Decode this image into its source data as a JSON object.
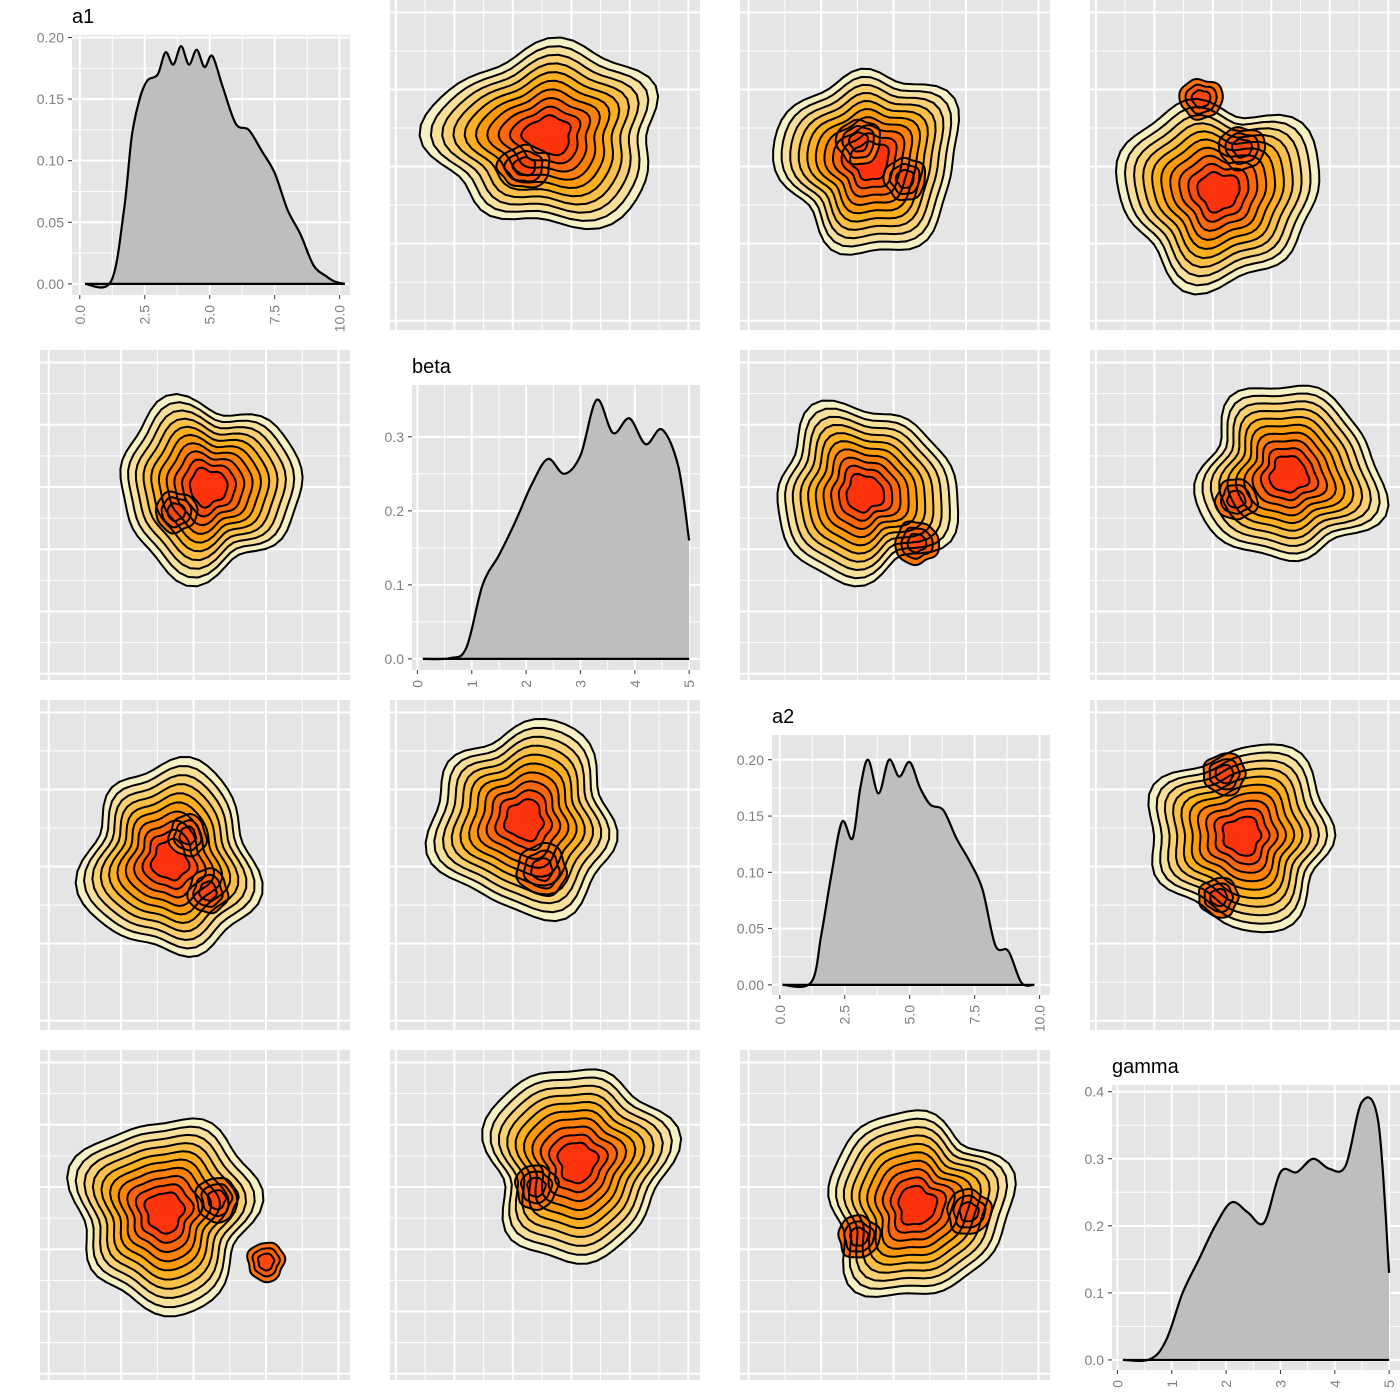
{
  "chart_data": {
    "type": "pairs",
    "colors": {
      "panel_bg": "#e5e5e5",
      "grid": "#ffffff",
      "density_fill": "#bebebe",
      "density_line": "#000000",
      "contour_line": "#000000",
      "heat_low": "#f7f1c4",
      "heat_mid": "#ffa500",
      "heat_high": "#ff2a00"
    },
    "variables": [
      {
        "name": "a1",
        "xlim": [
          -0.3,
          10.4
        ],
        "ylim": [
          -0.009,
          0.202
        ],
        "xticks": [
          "0.0",
          "2.5",
          "5.0",
          "7.5",
          "10.0"
        ],
        "xtick_values": [
          0,
          2.5,
          5,
          7.5,
          10
        ],
        "yticks": [
          "0.00",
          "0.05",
          "0.10",
          "0.15",
          "0.20"
        ],
        "ytick_values": [
          0,
          0.05,
          0.1,
          0.15,
          0.2
        ]
      },
      {
        "name": "beta",
        "xlim": [
          -0.1,
          5.2
        ],
        "ylim": [
          -0.015,
          0.37
        ],
        "xticks": [
          "0",
          "1",
          "2",
          "3",
          "4",
          "5"
        ],
        "xtick_values": [
          0,
          1,
          2,
          3,
          4,
          5
        ],
        "yticks": [
          "0.0",
          "0.1",
          "0.2",
          "0.3"
        ],
        "ytick_values": [
          0,
          0.1,
          0.2,
          0.3
        ]
      },
      {
        "name": "a2",
        "xlim": [
          -0.3,
          10.4
        ],
        "ylim": [
          -0.009,
          0.222
        ],
        "xticks": [
          "0.0",
          "2.5",
          "5.0",
          "7.5",
          "10.0"
        ],
        "xtick_values": [
          0,
          2.5,
          5,
          7.5,
          10
        ],
        "yticks": [
          "0.00",
          "0.05",
          "0.10",
          "0.15",
          "0.20"
        ],
        "ytick_values": [
          0,
          0.05,
          0.1,
          0.15,
          0.2
        ]
      },
      {
        "name": "gamma",
        "xlim": [
          -0.1,
          5.2
        ],
        "ylim": [
          -0.015,
          0.41
        ],
        "xticks": [
          "0",
          "1",
          "2",
          "3",
          "4",
          "5"
        ],
        "xtick_values": [
          0,
          1,
          2,
          3,
          4,
          5
        ],
        "yticks": [
          "0.0",
          "0.1",
          "0.2",
          "0.3",
          "0.4"
        ],
        "ytick_values": [
          0,
          0.1,
          0.2,
          0.3,
          0.4
        ]
      }
    ],
    "diagonal": [
      {
        "var": "a1",
        "x": [
          0.2,
          1.2,
          1.7,
          2.0,
          2.3,
          2.6,
          3.0,
          3.3,
          3.6,
          3.9,
          4.2,
          4.5,
          4.8,
          5.1,
          5.5,
          6.0,
          6.5,
          7.0,
          7.5,
          8.0,
          8.5,
          9.0,
          9.5,
          9.8,
          10.2
        ],
        "y": [
          0,
          0.002,
          0.06,
          0.12,
          0.15,
          0.165,
          0.17,
          0.188,
          0.178,
          0.193,
          0.178,
          0.19,
          0.176,
          0.185,
          0.16,
          0.13,
          0.125,
          0.108,
          0.09,
          0.06,
          0.04,
          0.015,
          0.006,
          0.002,
          0
        ]
      },
      {
        "var": "beta",
        "x": [
          0.1,
          0.6,
          0.9,
          1.2,
          1.5,
          1.8,
          2.1,
          2.4,
          2.7,
          3.0,
          3.3,
          3.6,
          3.9,
          4.2,
          4.5,
          4.8,
          5.0
        ],
        "y": [
          0,
          0.001,
          0.015,
          0.1,
          0.14,
          0.185,
          0.235,
          0.27,
          0.25,
          0.275,
          0.35,
          0.305,
          0.325,
          0.29,
          0.31,
          0.26,
          0.16
        ]
      },
      {
        "var": "a2",
        "x": [
          0.1,
          1.2,
          1.6,
          2.0,
          2.4,
          2.8,
          3.1,
          3.4,
          3.8,
          4.2,
          4.6,
          5.0,
          5.4,
          5.8,
          6.3,
          6.8,
          7.3,
          7.8,
          8.3,
          8.8,
          9.3,
          9.8
        ],
        "y": [
          0,
          0.002,
          0.045,
          0.1,
          0.145,
          0.13,
          0.175,
          0.2,
          0.17,
          0.2,
          0.185,
          0.198,
          0.175,
          0.16,
          0.155,
          0.13,
          0.11,
          0.085,
          0.035,
          0.03,
          0.002,
          0
        ]
      },
      {
        "var": "gamma",
        "x": [
          0.1,
          0.6,
          0.9,
          1.2,
          1.5,
          1.8,
          2.1,
          2.4,
          2.7,
          3.0,
          3.3,
          3.6,
          3.9,
          4.2,
          4.5,
          4.8,
          5.0
        ],
        "y": [
          0,
          0.001,
          0.03,
          0.1,
          0.15,
          0.2,
          0.235,
          0.22,
          0.205,
          0.28,
          0.28,
          0.3,
          0.285,
          0.29,
          0.385,
          0.355,
          0.13
        ]
      }
    ],
    "offdiagonal": [
      {
        "row": 0,
        "col": 1,
        "x_var": "beta",
        "y_var": "a1",
        "peaks": [
          [
            2.6,
            6.0,
            1.0
          ],
          [
            2.2,
            5.0,
            0.85
          ]
        ],
        "spread": [
          1.25,
          1.9
        ]
      },
      {
        "row": 0,
        "col": 2,
        "x_var": "a2",
        "y_var": "a1",
        "peaks": [
          [
            4.2,
            5.2,
            1.0
          ],
          [
            3.8,
            5.8,
            0.9
          ],
          [
            5.4,
            4.6,
            0.85
          ]
        ],
        "spread": [
          2.0,
          1.9
        ]
      },
      {
        "row": 0,
        "col": 3,
        "x_var": "gamma",
        "y_var": "a1",
        "peaks": [
          [
            2.1,
            4.2,
            1.0
          ],
          [
            2.5,
            5.6,
            0.85
          ],
          [
            1.8,
            7.2,
            0.8
          ]
        ],
        "spread": [
          1.1,
          1.9
        ]
      },
      {
        "row": 1,
        "col": 0,
        "x_var": "a1",
        "y_var": "beta",
        "peaks": [
          [
            5.5,
            3.0,
            1.0
          ],
          [
            4.4,
            2.6,
            0.85
          ]
        ],
        "spread": [
          2.0,
          0.9
        ]
      },
      {
        "row": 1,
        "col": 2,
        "x_var": "a2",
        "y_var": "beta",
        "peaks": [
          [
            4.0,
            2.9,
            1.0
          ],
          [
            5.8,
            2.1,
            0.9
          ]
        ],
        "spread": [
          2.0,
          0.9
        ]
      },
      {
        "row": 1,
        "col": 3,
        "x_var": "gamma",
        "y_var": "beta",
        "peaks": [
          [
            3.3,
            3.2,
            1.0
          ],
          [
            2.4,
            2.8,
            0.85
          ]
        ],
        "spread": [
          1.0,
          0.9
        ]
      },
      {
        "row": 2,
        "col": 0,
        "x_var": "a1",
        "y_var": "a2",
        "peaks": [
          [
            4.2,
            5.2,
            1.0
          ],
          [
            5.5,
            4.2,
            0.85
          ],
          [
            4.8,
            6.0,
            0.8
          ]
        ],
        "spread": [
          1.9,
          2.0
        ]
      },
      {
        "row": 2,
        "col": 1,
        "x_var": "beta",
        "y_var": "a2",
        "peaks": [
          [
            2.2,
            6.5,
            1.0
          ],
          [
            2.5,
            4.9,
            1.0
          ]
        ],
        "spread": [
          1.0,
          2.0
        ]
      },
      {
        "row": 2,
        "col": 3,
        "x_var": "gamma",
        "y_var": "a2",
        "peaks": [
          [
            2.5,
            6.0,
            1.0
          ],
          [
            2.2,
            8.0,
            0.85
          ],
          [
            2.1,
            4.0,
            0.8
          ]
        ],
        "spread": [
          1.0,
          1.9
        ]
      },
      {
        "row": 3,
        "col": 0,
        "x_var": "a1",
        "y_var": "gamma",
        "peaks": [
          [
            4.0,
            2.6,
            1.0
          ],
          [
            5.8,
            2.8,
            0.85
          ],
          [
            7.5,
            1.8,
            0.75
          ]
        ],
        "spread": [
          2.0,
          1.0
        ]
      },
      {
        "row": 3,
        "col": 1,
        "x_var": "beta",
        "y_var": "gamma",
        "peaks": [
          [
            3.1,
            3.4,
            1.0
          ],
          [
            2.4,
            3.0,
            0.85
          ]
        ],
        "spread": [
          1.0,
          1.0
        ]
      },
      {
        "row": 3,
        "col": 2,
        "x_var": "a2",
        "y_var": "gamma",
        "peaks": [
          [
            5.8,
            2.7,
            1.0
          ],
          [
            7.6,
            2.6,
            0.9
          ],
          [
            3.8,
            2.2,
            0.85
          ]
        ],
        "spread": [
          2.0,
          0.95
        ]
      }
    ]
  }
}
